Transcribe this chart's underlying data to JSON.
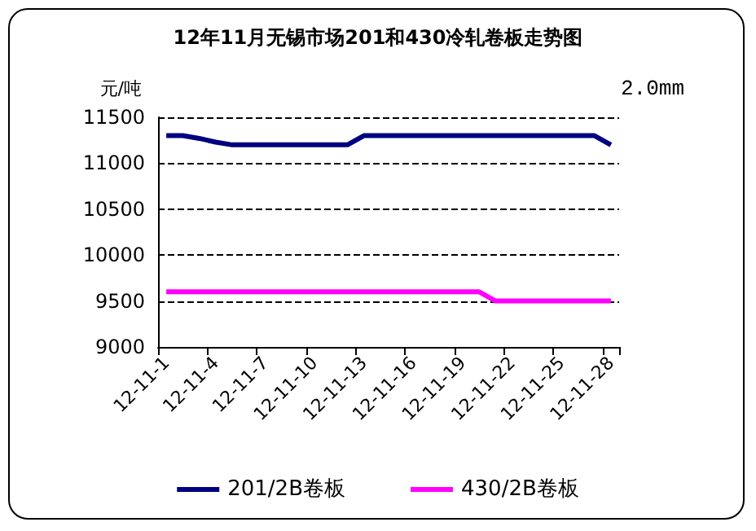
{
  "chart_data": {
    "type": "line",
    "title": "12年11月无锡市场201和430冷轧卷板走势图",
    "ylabel": "元/吨",
    "annotations": [
      "2.0mm"
    ],
    "categories": [
      "12-11-1",
      null,
      null,
      "12-11-4",
      null,
      null,
      "12-11-7",
      null,
      null,
      "12-11-10",
      null,
      null,
      "12-11-13",
      null,
      null,
      "12-11-16",
      null,
      null,
      "12-11-19",
      null,
      null,
      "12-11-22",
      null,
      null,
      "12-11-25",
      null,
      null,
      "12-11-28"
    ],
    "series": [
      {
        "name": "201/2B卷板",
        "color": "#000080",
        "values": [
          11300,
          11300,
          11270,
          11230,
          11200,
          11200,
          11200,
          11200,
          11200,
          11200,
          11200,
          11200,
          11300,
          11300,
          11300,
          11300,
          11300,
          11300,
          11300,
          11300,
          11300,
          11300,
          11300,
          11300,
          11300,
          11300,
          11300,
          11200
        ]
      },
      {
        "name": "430/2B卷板",
        "color": "#ff00ff",
        "values": [
          9600,
          9600,
          9600,
          9600,
          9600,
          9600,
          9600,
          9600,
          9600,
          9600,
          9600,
          9600,
          9600,
          9600,
          9600,
          9600,
          9600,
          9600,
          9600,
          9600,
          9500,
          9500,
          9500,
          9500,
          9500,
          9500,
          9500,
          9500
        ]
      }
    ],
    "ylim": [
      9000,
      11500
    ],
    "yticks": [
      9000,
      9500,
      10000,
      10500,
      11000,
      11500
    ],
    "grid": "y",
    "legend": "bottom",
    "marker": "none",
    "line_style": "solid"
  }
}
